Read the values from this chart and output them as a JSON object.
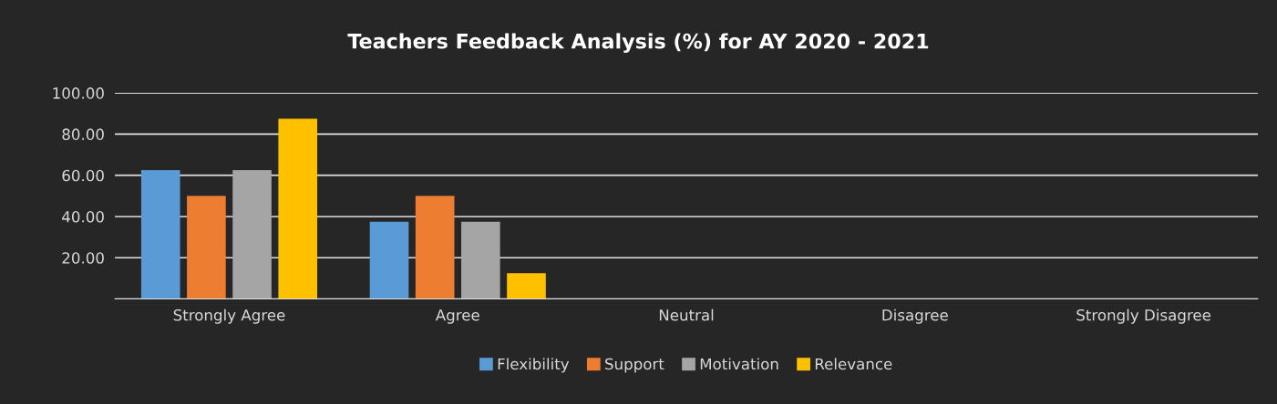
{
  "chart_data": {
    "type": "bar",
    "title": "Teachers Feedback Analysis (%) for AY 2020 - 2021",
    "categories": [
      "Strongly Agree",
      "Agree",
      "Neutral",
      "Disagree",
      "Strongly Disagree"
    ],
    "series": [
      {
        "name": "Flexibility",
        "color": "#5b9bd5",
        "values": [
          62.5,
          37.5,
          0,
          0,
          0
        ]
      },
      {
        "name": "Support",
        "color": "#ed7d31",
        "values": [
          50,
          50,
          0,
          0,
          0
        ]
      },
      {
        "name": "Motivation",
        "color": "#a5a5a5",
        "values": [
          62.5,
          37.5,
          0,
          0,
          0
        ]
      },
      {
        "name": "Relevance",
        "color": "#ffc000",
        "values": [
          87.5,
          12.5,
          0,
          0,
          0
        ]
      }
    ],
    "ylim": [
      0,
      100
    ],
    "yticks": [
      {
        "value": 0,
        "label": null
      },
      {
        "value": 20,
        "label": "20.00"
      },
      {
        "value": 40,
        "label": "40.00"
      },
      {
        "value": 60,
        "label": "60.00"
      },
      {
        "value": 80,
        "label": "80.00"
      },
      {
        "value": 100,
        "label": "100.00"
      }
    ],
    "grid": "y",
    "legend": "bottom"
  }
}
